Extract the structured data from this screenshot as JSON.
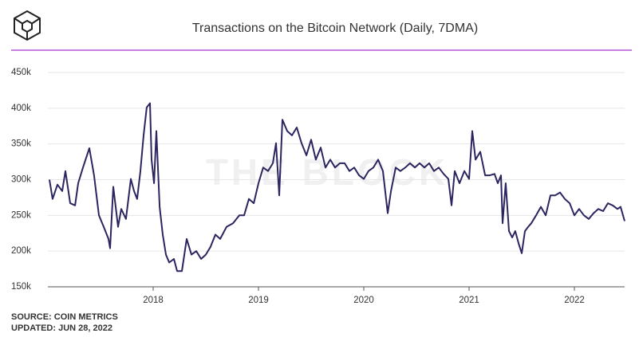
{
  "chart_data": {
    "type": "line",
    "title": "Transactions on the Bitcoin Network (Daily, 7DMA)",
    "watermark": "THE BLOCK",
    "source": "SOURCE: COIN METRICS",
    "updated": "UPDATED: JUN 28, 2022",
    "color": "#2b2560",
    "grid": true,
    "xlim": [
      2017,
      2022.5
    ],
    "xticks": [
      2018,
      2019,
      2020,
      2021,
      2022
    ],
    "ylim": [
      150000,
      450000
    ],
    "yticks": [
      {
        "value": 150000,
        "label": "150k"
      },
      {
        "value": 200000,
        "label": "200k"
      },
      {
        "value": 250000,
        "label": "250k"
      },
      {
        "value": 300000,
        "label": "300k"
      },
      {
        "value": 350000,
        "label": "350k"
      },
      {
        "value": 400000,
        "label": "400k"
      },
      {
        "value": 450000,
        "label": "450k"
      }
    ],
    "x": [
      2017.015,
      2017.045,
      2017.091,
      2017.136,
      2017.167,
      2017.212,
      2017.258,
      2017.288,
      2017.333,
      2017.394,
      2017.439,
      2017.485,
      2017.53,
      2017.576,
      2017.591,
      2017.621,
      2017.667,
      2017.697,
      2017.742,
      2017.788,
      2017.818,
      2017.848,
      2017.879,
      2017.909,
      2017.939,
      2017.97,
      2017.985,
      2018.008,
      2018.03,
      2018.061,
      2018.091,
      2018.121,
      2018.152,
      2018.197,
      2018.227,
      2018.273,
      2018.318,
      2018.364,
      2018.409,
      2018.455,
      2018.5,
      2018.545,
      2018.591,
      2018.636,
      2018.697,
      2018.758,
      2018.818,
      2018.864,
      2018.909,
      2018.955,
      2019.0,
      2019.045,
      2019.091,
      2019.136,
      2019.167,
      2019.197,
      2019.227,
      2019.273,
      2019.318,
      2019.364,
      2019.409,
      2019.455,
      2019.5,
      2019.545,
      2019.591,
      2019.636,
      2019.682,
      2019.727,
      2019.773,
      2019.818,
      2019.864,
      2019.909,
      2019.955,
      2020.0,
      2020.045,
      2020.091,
      2020.136,
      2020.182,
      2020.227,
      2020.258,
      2020.303,
      2020.348,
      2020.394,
      2020.439,
      2020.485,
      2020.53,
      2020.576,
      2020.621,
      2020.667,
      2020.712,
      2020.758,
      2020.803,
      2020.833,
      2020.864,
      2020.909,
      2020.955,
      2021.0,
      2021.03,
      2021.061,
      2021.106,
      2021.152,
      2021.197,
      2021.242,
      2021.273,
      2021.303,
      2021.318,
      2021.348,
      2021.379,
      2021.409,
      2021.439,
      2021.47,
      2021.5,
      2021.53,
      2021.561,
      2021.591,
      2021.636,
      2021.682,
      2021.727,
      2021.773,
      2021.818,
      2021.864,
      2021.909,
      2021.955,
      2022.0,
      2022.045,
      2022.091,
      2022.136,
      2022.182,
      2022.227,
      2022.273,
      2022.318,
      2022.364,
      2022.409,
      2022.439,
      2022.477
    ],
    "values": [
      300000,
      273000,
      293000,
      284000,
      312000,
      267000,
      264000,
      295000,
      317000,
      344000,
      306000,
      250000,
      234000,
      217000,
      204000,
      290000,
      234000,
      259000,
      245000,
      301000,
      284000,
      273000,
      312000,
      362000,
      401000,
      407000,
      328000,
      295000,
      368000,
      262000,
      223000,
      195000,
      184000,
      189000,
      172000,
      172000,
      217000,
      195000,
      200000,
      189000,
      195000,
      206000,
      223000,
      217000,
      234000,
      239000,
      250000,
      250000,
      273000,
      267000,
      295000,
      317000,
      312000,
      323000,
      351000,
      278000,
      384000,
      368000,
      362000,
      373000,
      351000,
      334000,
      356000,
      328000,
      345000,
      317000,
      328000,
      317000,
      323000,
      323000,
      312000,
      317000,
      306000,
      301000,
      312000,
      317000,
      328000,
      312000,
      253000,
      284000,
      317000,
      312000,
      317000,
      323000,
      317000,
      323000,
      317000,
      323000,
      312000,
      317000,
      308000,
      301000,
      264000,
      312000,
      295000,
      312000,
      301000,
      368000,
      328000,
      339000,
      306000,
      306000,
      308000,
      295000,
      306000,
      239000,
      295000,
      228000,
      219000,
      228000,
      211000,
      197000,
      228000,
      234000,
      239000,
      250000,
      262000,
      250000,
      278000,
      278000,
      282000,
      273000,
      267000,
      250000,
      259000,
      250000,
      245000,
      253000,
      259000,
      256000,
      267000,
      264000,
      259000,
      262000,
      242000
    ]
  }
}
